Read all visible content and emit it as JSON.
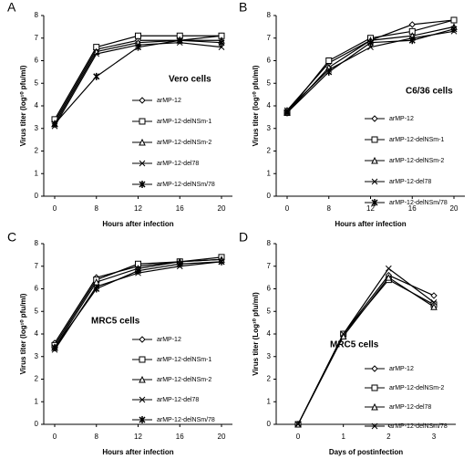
{
  "chart_data": [
    {
      "type": "line",
      "panel_label": "A",
      "annotation": "Vero cells",
      "x_label": "Hours after infection",
      "y_label": "Virus titer (log¹⁰ pfu/ml)",
      "categories": [
        "0",
        "8",
        "12",
        "16",
        "20"
      ],
      "ylim": [
        0,
        8
      ],
      "yticks": [
        0,
        1,
        2,
        3,
        4,
        5,
        6,
        7,
        8
      ],
      "series": [
        {
          "name": "arMP-12",
          "marker": "diamond",
          "color": "#000000",
          "values": [
            3.3,
            6.5,
            6.9,
            6.9,
            7.1
          ]
        },
        {
          "name": "arMP-12-delNSm-1",
          "marker": "square",
          "color": "#000000",
          "values": [
            3.4,
            6.6,
            7.1,
            7.1,
            7.1
          ]
        },
        {
          "name": "arMP-12-delNSm-2",
          "marker": "triangle",
          "color": "#000000",
          "values": [
            3.2,
            6.4,
            6.8,
            6.9,
            6.9
          ]
        },
        {
          "name": "arMP-12-del78",
          "marker": "x",
          "color": "#000000",
          "values": [
            3.1,
            6.3,
            6.7,
            6.8,
            6.6
          ]
        },
        {
          "name": "arMP-12-delNSm/78",
          "marker": "star",
          "color": "#000000",
          "values": [
            3.2,
            5.3,
            6.6,
            6.9,
            6.8
          ]
        }
      ]
    },
    {
      "type": "line",
      "panel_label": "B",
      "annotation": "C6/36 cells",
      "x_label": "Hours after infection",
      "y_label": "Virus titer (log¹⁰ pfu/ml)",
      "categories": [
        "0",
        "8",
        "12",
        "16",
        "20"
      ],
      "ylim": [
        0,
        8
      ],
      "yticks": [
        0,
        1,
        2,
        3,
        4,
        5,
        6,
        7,
        8
      ],
      "series": [
        {
          "name": "arMP-12",
          "marker": "diamond",
          "color": "#000000",
          "values": [
            3.8,
            5.9,
            6.9,
            7.6,
            7.8
          ]
        },
        {
          "name": "arMP-12-delNSm-1",
          "marker": "square",
          "color": "#000000",
          "values": [
            3.7,
            6.0,
            7.0,
            7.3,
            7.8
          ]
        },
        {
          "name": "arMP-12-delNSm-2",
          "marker": "triangle",
          "color": "#000000",
          "values": [
            3.7,
            5.7,
            6.9,
            7.1,
            7.5
          ]
        },
        {
          "name": "arMP-12-del78",
          "marker": "x",
          "color": "#000000",
          "values": [
            3.8,
            5.6,
            6.6,
            7.0,
            7.3
          ]
        },
        {
          "name": "arMP-12-delNSm/78",
          "marker": "star",
          "color": "#000000",
          "values": [
            3.7,
            5.5,
            6.8,
            6.9,
            7.4
          ]
        }
      ]
    },
    {
      "type": "line",
      "panel_label": "C",
      "annotation": "MRC5 cells",
      "x_label": "Hours after infection",
      "y_label": "Virus titer (log¹⁰ pfu/ml)",
      "categories": [
        "0",
        "8",
        "12",
        "16",
        "20"
      ],
      "ylim": [
        0,
        8
      ],
      "yticks": [
        0,
        1,
        2,
        3,
        4,
        5,
        6,
        7,
        8
      ],
      "series": [
        {
          "name": "arMP-12",
          "marker": "diamond",
          "color": "#000000",
          "values": [
            3.6,
            6.5,
            7.0,
            7.2,
            7.3
          ]
        },
        {
          "name": "arMP-12-delNSm-1",
          "marker": "square",
          "color": "#000000",
          "values": [
            3.5,
            6.4,
            7.1,
            7.2,
            7.4
          ]
        },
        {
          "name": "arMP-12-delNSm-2",
          "marker": "triangle",
          "color": "#000000",
          "values": [
            3.4,
            6.3,
            6.9,
            7.2,
            7.3
          ]
        },
        {
          "name": "arMP-12-del78",
          "marker": "x",
          "color": "#000000",
          "values": [
            3.3,
            6.1,
            6.7,
            7.0,
            7.2
          ]
        },
        {
          "name": "arMP-12-delNSm/78",
          "marker": "star",
          "color": "#000000",
          "values": [
            3.4,
            6.0,
            6.8,
            7.1,
            7.2
          ]
        }
      ]
    },
    {
      "type": "line",
      "panel_label": "D",
      "annotation": "MRC5 cells",
      "x_label": "Days of postinfection",
      "y_label": "Virus titer (Log¹⁰ pfu/ml)",
      "categories": [
        "0",
        "1",
        "2",
        "3"
      ],
      "ylim": [
        0,
        8
      ],
      "yticks": [
        0,
        1,
        2,
        3,
        4,
        5,
        6,
        7,
        8
      ],
      "series": [
        {
          "name": "arMP-12",
          "marker": "diamond",
          "color": "#000000",
          "values": [
            0,
            4.0,
            6.6,
            5.7
          ]
        },
        {
          "name": "arMP-12-delNSm-2",
          "marker": "square",
          "color": "#000000",
          "values": [
            0,
            4.0,
            6.4,
            5.3
          ]
        },
        {
          "name": "arMP-12-del78",
          "marker": "triangle",
          "color": "#000000",
          "values": [
            0,
            3.9,
            6.5,
            5.2
          ]
        },
        {
          "name": "arMP-12-delNSm/78",
          "marker": "x",
          "color": "#000000",
          "values": [
            0,
            4.0,
            6.9,
            5.4
          ]
        }
      ]
    }
  ]
}
